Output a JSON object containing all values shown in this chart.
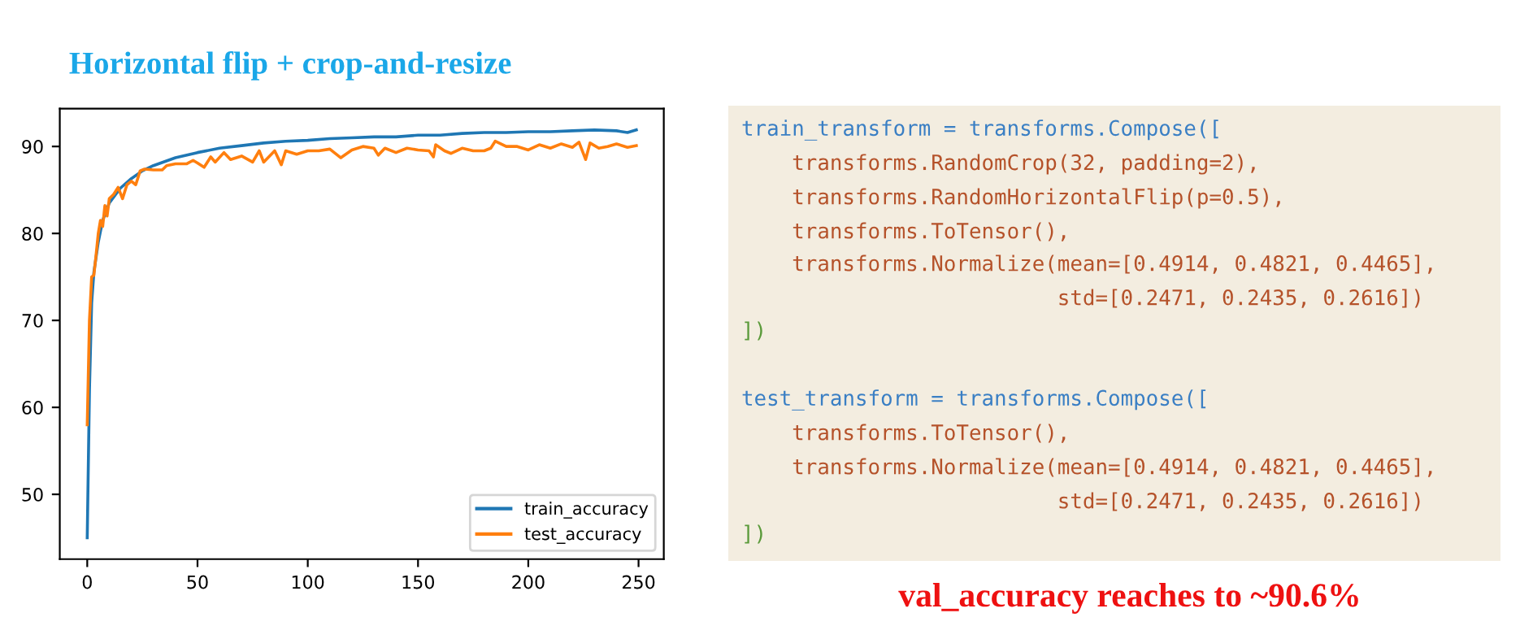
{
  "chart_data": {
    "type": "line",
    "title": "Horizontal flip + crop-and-resize",
    "xlim": [
      -12.45,
      261.45
    ],
    "xticks": [
      0,
      50,
      100,
      150,
      200,
      250
    ],
    "ylim": [
      42.55,
      94.35
    ],
    "yticks": [
      50,
      60,
      70,
      80,
      90
    ],
    "grid": false,
    "legend": "bottom right",
    "series": [
      {
        "name": "train_accuracy",
        "color": "#1f77b4",
        "x": [
          0,
          1,
          2,
          3,
          5,
          7,
          10,
          15,
          20,
          25,
          30,
          40,
          50,
          60,
          70,
          80,
          90,
          100,
          110,
          120,
          130,
          140,
          150,
          160,
          170,
          180,
          190,
          200,
          210,
          220,
          230,
          240,
          245,
          249
        ],
        "values": [
          45,
          62,
          72,
          75.5,
          79,
          81.5,
          83.5,
          85.2,
          86.3,
          87.2,
          87.8,
          88.7,
          89.3,
          89.8,
          90.1,
          90.4,
          90.6,
          90.7,
          90.9,
          91,
          91.1,
          91.1,
          91.3,
          91.3,
          91.5,
          91.6,
          91.6,
          91.7,
          91.7,
          91.8,
          91.9,
          91.8,
          91.6,
          91.9
        ]
      },
      {
        "name": "test_accuracy",
        "color": "#ff7f0e",
        "x": [
          0,
          1,
          2,
          3,
          4,
          5,
          6,
          7,
          8,
          9,
          10,
          12,
          14,
          16,
          18,
          20,
          22,
          24,
          26,
          30,
          34,
          36,
          40,
          45,
          48,
          50,
          53,
          56,
          58,
          62,
          65,
          70,
          75,
          78,
          80,
          85,
          88,
          90,
          95,
          100,
          105,
          110,
          115,
          120,
          125,
          130,
          132,
          135,
          140,
          145,
          150,
          155,
          157,
          158,
          162,
          165,
          170,
          175,
          180,
          183,
          185,
          190,
          195,
          200,
          205,
          210,
          215,
          220,
          223,
          226,
          228,
          232,
          236,
          240,
          245,
          249
        ],
        "values": [
          58,
          70,
          75,
          75.2,
          77.5,
          80,
          81.5,
          80.8,
          83.2,
          82,
          84,
          84.5,
          85.3,
          84,
          85.6,
          86,
          85.6,
          87.2,
          87.4,
          87.3,
          87.3,
          87.8,
          88,
          88,
          88.4,
          88.1,
          87.6,
          88.8,
          88.2,
          89.3,
          88.5,
          88.9,
          88.2,
          89.5,
          88.2,
          89.5,
          87.9,
          89.5,
          89.1,
          89.5,
          89.5,
          89.7,
          88.7,
          89.6,
          90,
          89.8,
          89,
          89.8,
          89.3,
          89.8,
          89.6,
          89.5,
          88.8,
          90.2,
          89.5,
          89.2,
          89.8,
          89.5,
          89.5,
          89.8,
          90.6,
          90,
          90,
          89.6,
          90.2,
          89.8,
          90.3,
          89.9,
          90.5,
          88.5,
          90.4,
          89.8,
          90,
          90.3,
          89.9,
          90.1
        ]
      }
    ],
    "annotations": [
      "train_transform = transforms.Compose([",
      "    transforms.RandomCrop(32, padding=2),",
      "    transforms.RandomHorizontalFlip(p=0.5),",
      "    transforms.ToTensor(),",
      "    transforms.Normalize(mean=[0.4914, 0.4821, 0.4465],",
      "                         std=[0.2471, 0.2435, 0.2616])",
      "])",
      "test_transform = transforms.Compose([",
      "    transforms.ToTensor(),",
      "    transforms.Normalize(mean=[0.4914, 0.4821, 0.4465],",
      "                         std=[0.2471, 0.2435, 0.2616])",
      "])",
      "val_accuracy reaches to ~90.6%"
    ]
  }
}
